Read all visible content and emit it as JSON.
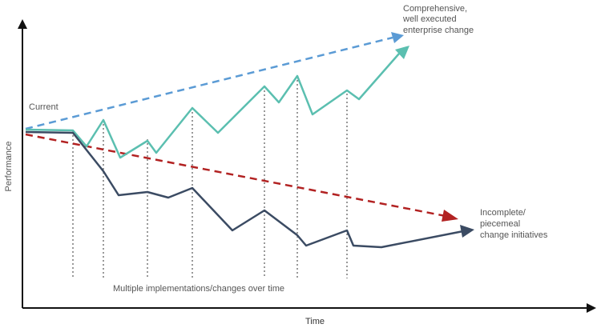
{
  "axes": {
    "x_label": "Time",
    "y_label": "Performance"
  },
  "labels": {
    "current": "Current",
    "top_right": [
      "Comprehensive,",
      "well executed",
      "enterprise change"
    ],
    "bottom_right": [
      "Incomplete/",
      "piecemeal",
      "change initiatives"
    ],
    "middle_note": "Multiple implementations/changes over time"
  },
  "colors": {
    "axis": "#111111",
    "teal_line": "#5bbfb0",
    "navy_line": "#3b4b63",
    "blue_dashed": "#5b9bd5",
    "red_dashed": "#b22222",
    "guide_dotted": "#333333",
    "text": "#555555"
  }
}
